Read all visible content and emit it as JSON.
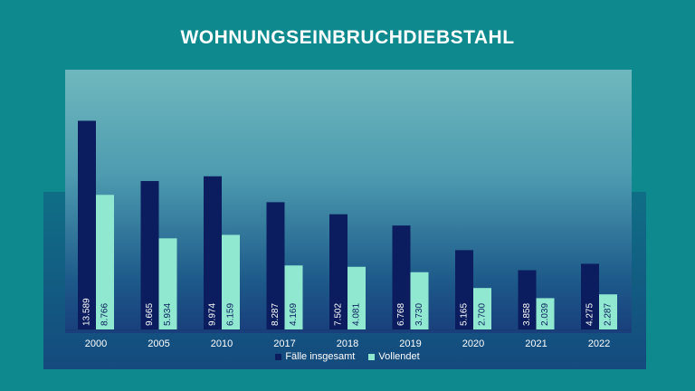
{
  "chart_data": {
    "type": "bar",
    "title": "WOHNUNGSEINBRUCHDIEBSTAHL",
    "categories": [
      "2000",
      "2005",
      "2010",
      "2017",
      "2018",
      "2019",
      "2020",
      "2021",
      "2022"
    ],
    "series": [
      {
        "name": "Fälle insgesamt",
        "color": "#0b1d5e",
        "values": [
          13589,
          9665,
          9974,
          8287,
          7502,
          6768,
          5165,
          3858,
          4275
        ],
        "labels": [
          "13.589",
          "9.665",
          "9.974",
          "8.287",
          "7.502",
          "6.768",
          "5.165",
          "3.858",
          "4.275"
        ]
      },
      {
        "name": "Vollendet",
        "color": "#8fe8cf",
        "values": [
          8766,
          5934,
          6159,
          4169,
          4081,
          3730,
          2700,
          2039,
          2287
        ],
        "labels": [
          "8.766",
          "5.934",
          "6.159",
          "4.169",
          "4.081",
          "3.730",
          "2.700",
          "2.039",
          "2.287"
        ]
      }
    ],
    "ylim": [
      0,
      14500
    ],
    "grid": false,
    "legend_position": "bottom"
  }
}
